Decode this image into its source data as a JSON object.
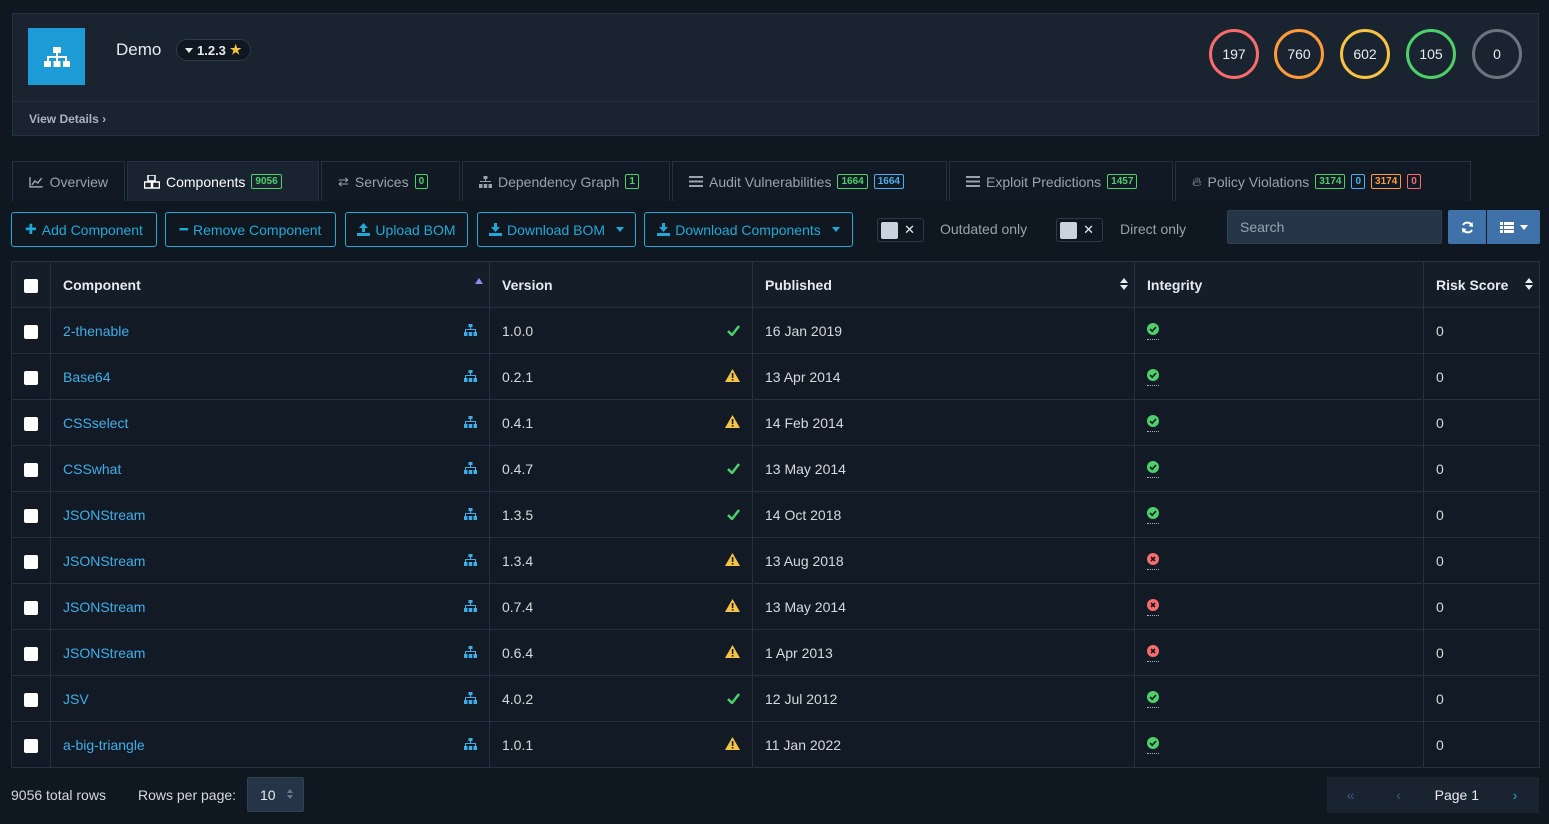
{
  "project": {
    "name": "Demo",
    "version": "1.2.3",
    "view_details": "View Details",
    "colors": {
      "logo": "#1c9bd7",
      "accent": "#20a8d8"
    },
    "severity_counts": [
      {
        "value": "197",
        "color": "#f86c6b"
      },
      {
        "value": "760",
        "color": "#fd9b3a"
      },
      {
        "value": "602",
        "color": "#f6c343"
      },
      {
        "value": "105",
        "color": "#4dd069"
      },
      {
        "value": "0",
        "color": "#6b7580"
      }
    ]
  },
  "tabs": [
    {
      "label": "Overview",
      "icon": "line-chart-icon"
    },
    {
      "label": "Components",
      "icon": "cubes-icon",
      "badges": [
        "9056"
      ]
    },
    {
      "label": "Services",
      "icon": "exchange-icon",
      "badges": [
        "0"
      ]
    },
    {
      "label": "Dependency Graph",
      "icon": "sitemap-icon",
      "badges": [
        "1"
      ]
    },
    {
      "label": "Audit Vulnerabilities",
      "icon": "tasks-icon",
      "badges": [
        "1664",
        "1664"
      ]
    },
    {
      "label": "Exploit Predictions",
      "icon": "tasks-icon",
      "badges": [
        "1457"
      ]
    },
    {
      "label": "Policy Violations",
      "icon": "fire-icon",
      "badges": [
        "3174",
        "0",
        "3174",
        "0"
      ]
    }
  ],
  "toolbar": {
    "add_component": "Add Component",
    "remove_component": "Remove Component",
    "upload_bom": "Upload BOM",
    "download_bom": "Download BOM",
    "download_components": "Download Components",
    "outdated_only": "Outdated only",
    "direct_only": "Direct only",
    "search_placeholder": "Search"
  },
  "table": {
    "columns": [
      "Component",
      "Version",
      "Published",
      "Integrity",
      "Risk Score"
    ],
    "rows": [
      {
        "component": "2-thenable",
        "version": "1.0.0",
        "version_status": "current",
        "published": "16 Jan 2019",
        "integrity": "ok",
        "risk_score": "0"
      },
      {
        "component": "Base64",
        "version": "0.2.1",
        "version_status": "outdated",
        "published": "13 Apr 2014",
        "integrity": "ok",
        "risk_score": "0"
      },
      {
        "component": "CSSselect",
        "version": "0.4.1",
        "version_status": "outdated",
        "published": "14 Feb 2014",
        "integrity": "ok",
        "risk_score": "0"
      },
      {
        "component": "CSSwhat",
        "version": "0.4.7",
        "version_status": "current",
        "published": "13 May 2014",
        "integrity": "ok",
        "risk_score": "0"
      },
      {
        "component": "JSONStream",
        "version": "1.3.5",
        "version_status": "current",
        "published": "14 Oct 2018",
        "integrity": "ok",
        "risk_score": "0"
      },
      {
        "component": "JSONStream",
        "version": "1.3.4",
        "version_status": "outdated",
        "published": "13 Aug 2018",
        "integrity": "fail",
        "risk_score": "0"
      },
      {
        "component": "JSONStream",
        "version": "0.7.4",
        "version_status": "outdated",
        "published": "13 May 2014",
        "integrity": "fail",
        "risk_score": "0"
      },
      {
        "component": "JSONStream",
        "version": "0.6.4",
        "version_status": "outdated",
        "published": "1 Apr 2013",
        "integrity": "fail",
        "risk_score": "0"
      },
      {
        "component": "JSV",
        "version": "4.0.2",
        "version_status": "current",
        "published": "12 Jul 2012",
        "integrity": "ok",
        "risk_score": "0"
      },
      {
        "component": "a-big-triangle",
        "version": "1.0.1",
        "version_status": "outdated",
        "published": "11 Jan 2022",
        "integrity": "ok",
        "risk_score": "0"
      }
    ]
  },
  "footer": {
    "total_rows": "9056 total rows",
    "rows_per_page_label": "Rows per page:",
    "rows_per_page": "10",
    "page_label": "Page 1"
  }
}
